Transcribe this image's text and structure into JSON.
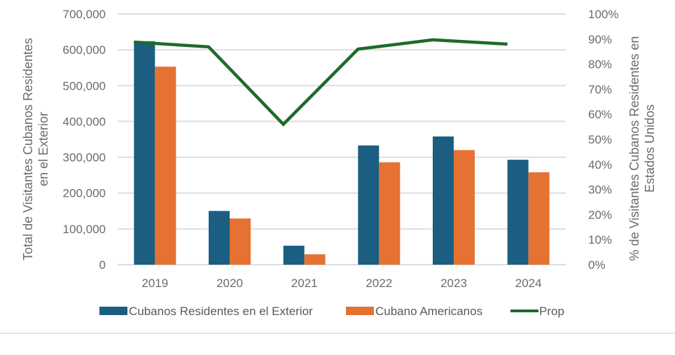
{
  "chart_data": {
    "type": "bar",
    "title": "",
    "categories": [
      "2019",
      "2020",
      "2021",
      "2022",
      "2023",
      "2024"
    ],
    "series": [
      {
        "name": "Cubanos Residentes en el Exterior",
        "type": "bar",
        "axis": "left",
        "color": "#1b5e82",
        "values": [
          624000,
          150000,
          53000,
          333000,
          358000,
          293000
        ]
      },
      {
        "name": "Cubano Americanos",
        "type": "bar",
        "axis": "left",
        "color": "#e57232",
        "values": [
          553000,
          129000,
          29000,
          286000,
          320000,
          258000
        ]
      },
      {
        "name": "Prop",
        "type": "line",
        "axis": "right",
        "color": "#1e6b2a",
        "values": [
          0.888,
          0.869,
          0.56,
          0.86,
          0.897,
          0.88
        ]
      }
    ],
    "ylabel": "Total de Visitantes Cubanos Residentes en el Exterior",
    "ylabel_lines": [
      "Total de Visitantes Cubanos Residentes",
      "en el Exterior"
    ],
    "y2label": "% de Visitantes Cubanos Residentes en Estados Unidos",
    "y2label_lines": [
      "% de Visitantes Cubanos Residentes en",
      "Estados Unidos"
    ],
    "ylim": [
      0,
      700000
    ],
    "y2lim": [
      0,
      1
    ],
    "yticks": [
      "0",
      "100,000",
      "200,000",
      "300,000",
      "400,000",
      "500,000",
      "600,000",
      "700,000"
    ],
    "y2ticks": [
      "0%",
      "10%",
      "20%",
      "30%",
      "40%",
      "50%",
      "60%",
      "70%",
      "80%",
      "90%",
      "100%"
    ],
    "grid": true,
    "legend": "bottom"
  }
}
